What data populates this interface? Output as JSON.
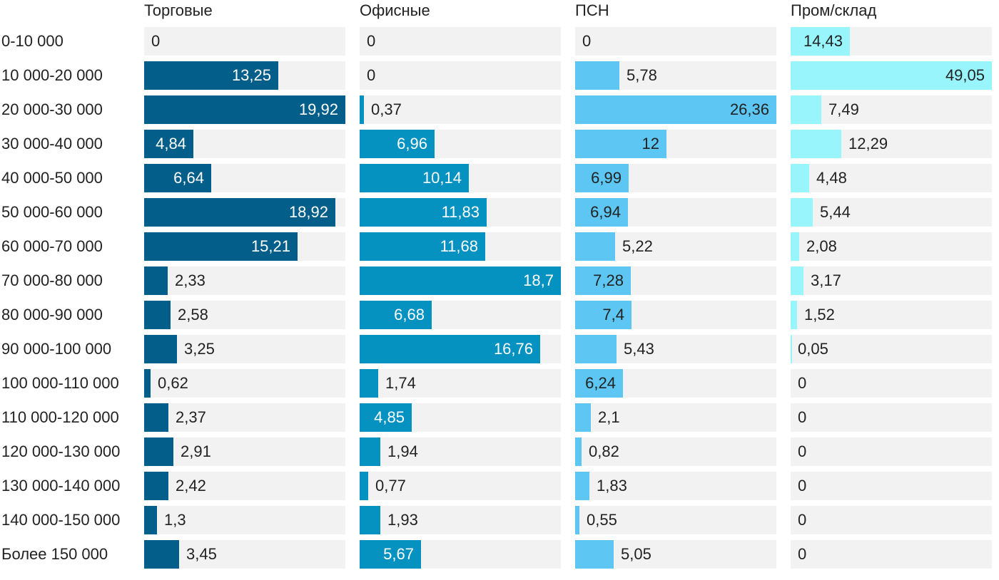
{
  "chart_data": {
    "type": "bar",
    "orientation": "horizontal",
    "layout": "small-multiples",
    "categories": [
      "0-10 000",
      "10 000-20 000",
      "20 000-30 000",
      "30 000-40 000",
      "40 000-50 000",
      "50 000-60 000",
      "60 000-70 000",
      "70 000-80 000",
      "80 000-90 000",
      "90 000-100 000",
      "100 000-110 000",
      "110 000-120 000",
      "120 000-130 000",
      "130 000-140 000",
      "140 000-150 000",
      "Более 150 000"
    ],
    "series": [
      {
        "name": "Торговые",
        "color": "#035e8a",
        "label_color_inside": "#ffffff",
        "max": 19.92,
        "values": [
          0,
          13.25,
          19.92,
          4.84,
          6.64,
          18.92,
          15.21,
          2.33,
          2.58,
          3.25,
          0.62,
          2.37,
          2.91,
          2.42,
          1.3,
          3.45
        ],
        "labels": [
          "0",
          "13,25",
          "19,92",
          "4,84",
          "6,64",
          "18,92",
          "15,21",
          "2,33",
          "2,58",
          "3,25",
          "0,62",
          "2,37",
          "2,91",
          "2,42",
          "1,3",
          "3,45"
        ]
      },
      {
        "name": "Офисные",
        "color": "#0592c1",
        "label_color_inside": "#ffffff",
        "max": 18.7,
        "values": [
          0,
          0,
          0.37,
          6.96,
          10.14,
          11.83,
          11.68,
          18.7,
          6.68,
          16.76,
          1.74,
          4.85,
          1.94,
          0.77,
          1.93,
          5.67
        ],
        "labels": [
          "0",
          "0",
          "0,37",
          "6,96",
          "10,14",
          "11,83",
          "11,68",
          "18,7",
          "6,68",
          "16,76",
          "1,74",
          "4,85",
          "1,94",
          "0,77",
          "1,93",
          "5,67"
        ]
      },
      {
        "name": "ПСН",
        "color": "#5dc6f2",
        "label_color_inside": "#222222",
        "max": 26.36,
        "values": [
          0,
          5.78,
          26.36,
          12,
          6.99,
          6.94,
          5.22,
          7.28,
          7.4,
          5.43,
          6.24,
          2.1,
          0.82,
          1.83,
          0.55,
          5.05
        ],
        "labels": [
          "0",
          "5,78",
          "26,36",
          "12",
          "6,99",
          "6,94",
          "5,22",
          "7,28",
          "7,4",
          "5,43",
          "6,24",
          "2,1",
          "0,82",
          "1,83",
          "0,55",
          "5,05"
        ]
      },
      {
        "name": "Пром/склад",
        "color": "#98f5fb",
        "label_color_inside": "#222222",
        "max": 49.05,
        "values": [
          14.43,
          49.05,
          7.49,
          12.29,
          4.48,
          5.44,
          2.08,
          3.17,
          1.52,
          0.05,
          0,
          0,
          0,
          0,
          0,
          0
        ],
        "labels": [
          "14,43",
          "49,05",
          "7,49",
          "12,29",
          "4,48",
          "5,44",
          "2,08",
          "3,17",
          "1,52",
          "0,05",
          "0",
          "0",
          "0",
          "0",
          "0",
          "0"
        ]
      }
    ],
    "title": "",
    "xlabel": "",
    "ylabel": "",
    "grid": false,
    "legend": "none"
  }
}
